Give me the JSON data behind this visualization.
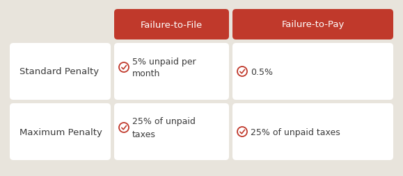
{
  "background_color": "#e8e4dc",
  "header_bg_color": "#c0392b",
  "header_text_color": "#ffffff",
  "cell_bg_color": "#ffffff",
  "row_label_color": "#3a3a3a",
  "cell_text_color": "#3a3a3a",
  "icon_color": "#c0392b",
  "headers": [
    "Failure-to-File",
    "Failure-to-Pay"
  ],
  "row_labels": [
    "Standard Penalty",
    "Maximum Penalty"
  ],
  "cell_data": [
    [
      "5% unpaid per\nmonth",
      "0.5%"
    ],
    [
      "25% of unpaid\ntaxes",
      "25% of unpaid taxes"
    ]
  ],
  "header_fontsize": 9.5,
  "row_label_fontsize": 9.5,
  "cell_fontsize": 9.0,
  "fig_width": 5.79,
  "fig_height": 2.55,
  "dpi": 100
}
